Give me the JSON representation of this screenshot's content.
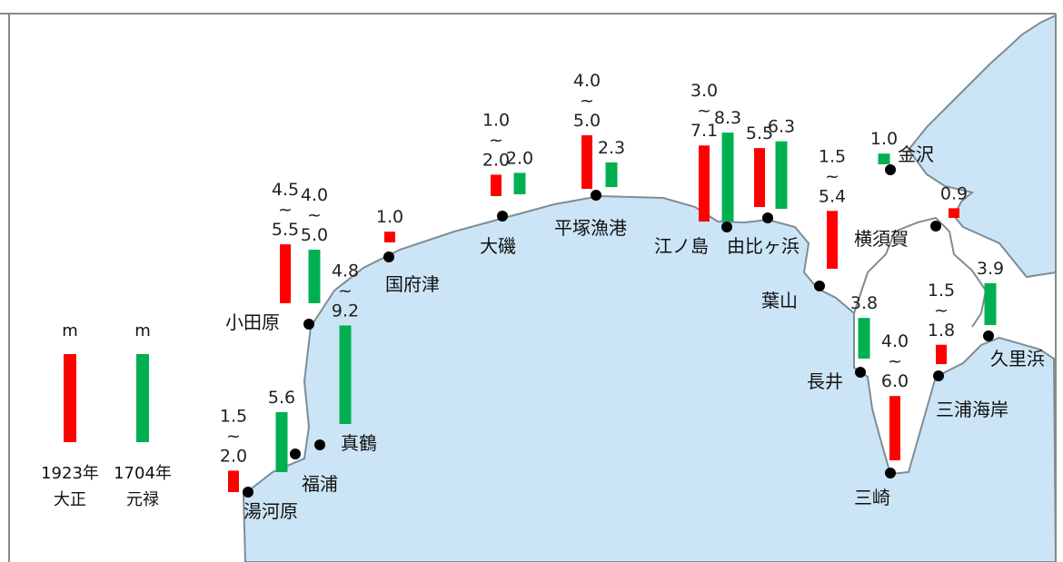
{
  "chart_data": {
    "type": "bar",
    "legend": [
      {
        "unit": "m",
        "year": "1923年",
        "era": "大正",
        "color": "#ff0000"
      },
      {
        "unit": "m",
        "year": "1704年",
        "era": "元禄",
        "color": "#00b050"
      }
    ],
    "places": [
      {
        "name": "湯河原",
        "bars": [
          {
            "series": "大正",
            "label": "1.5\n~\n2.0",
            "min": 1.5,
            "max": 2.0
          }
        ]
      },
      {
        "name": "福浦",
        "bars": [
          {
            "series": "元禄",
            "label": "5.6",
            "min": 5.6,
            "max": 5.6
          }
        ]
      },
      {
        "name": "小田原",
        "bars": [
          {
            "series": "大正",
            "label": "4.5\n~\n5.5",
            "min": 4.5,
            "max": 5.5
          },
          {
            "series": "元禄",
            "label": "4.0\n~\n5.0",
            "min": 4.0,
            "max": 5.0
          }
        ]
      },
      {
        "name": "真鶴",
        "bars": [
          {
            "series": "元禄",
            "label": "4.8\n~\n9.2",
            "min": 4.8,
            "max": 9.2
          }
        ]
      },
      {
        "name": "国府津",
        "bars": [
          {
            "series": "大正",
            "label": "1.0",
            "min": 1.0,
            "max": 1.0
          }
        ]
      },
      {
        "name": "大磯",
        "bars": [
          {
            "series": "大正",
            "label": "1.0\n~\n2.0",
            "min": 1.0,
            "max": 2.0
          },
          {
            "series": "元禄",
            "label": "2.0",
            "min": 2.0,
            "max": 2.0
          }
        ]
      },
      {
        "name": "平塚漁港",
        "bars": [
          {
            "series": "大正",
            "label": "4.0\n~\n5.0",
            "min": 4.0,
            "max": 5.0
          },
          {
            "series": "元禄",
            "label": "2.3",
            "min": 2.3,
            "max": 2.3
          }
        ]
      },
      {
        "name": "江ノ島",
        "bars": [
          {
            "series": "大正",
            "label": "3.0\n~\n7.1",
            "min": 3.0,
            "max": 7.1
          },
          {
            "series": "元禄",
            "label": "8.3",
            "min": 8.3,
            "max": 8.3
          }
        ]
      },
      {
        "name": "由比ヶ浜",
        "bars": [
          {
            "series": "大正",
            "label": "5.5",
            "min": 5.5,
            "max": 5.5
          },
          {
            "series": "元禄",
            "label": "6.3",
            "min": 6.3,
            "max": 6.3
          }
        ]
      },
      {
        "name": "葉山",
        "bars": [
          {
            "series": "大正",
            "label": "1.5\n~\n5.4",
            "min": 1.5,
            "max": 5.4
          }
        ]
      },
      {
        "name": "金沢",
        "bars": [
          {
            "series": "元禄",
            "label": "1.0",
            "min": 1.0,
            "max": 1.0
          }
        ]
      },
      {
        "name": "横須賀",
        "bars": [
          {
            "series": "大正",
            "label": "0.9",
            "min": 0.9,
            "max": 0.9
          }
        ]
      },
      {
        "name": "長井",
        "bars": [
          {
            "series": "元禄",
            "label": "3.8",
            "min": 3.8,
            "max": 3.8
          }
        ]
      },
      {
        "name": "三崎",
        "bars": [
          {
            "series": "大正",
            "label": "4.0\n~\n6.0",
            "min": 4.0,
            "max": 6.0
          }
        ]
      },
      {
        "name": "三浦海岸",
        "bars": [
          {
            "series": "大正",
            "label": "1.5\n~\n1.8",
            "min": 1.5,
            "max": 1.8
          }
        ]
      },
      {
        "name": "久里浜",
        "bars": [
          {
            "series": "元禄",
            "label": "3.9",
            "min": 3.9,
            "max": 3.9
          }
        ]
      }
    ],
    "colors": {
      "sea": "#cce5f6",
      "land": "#ffffff",
      "coast": "#7f8c96",
      "taisho": "#ff0000",
      "genroku": "#00b050"
    }
  }
}
